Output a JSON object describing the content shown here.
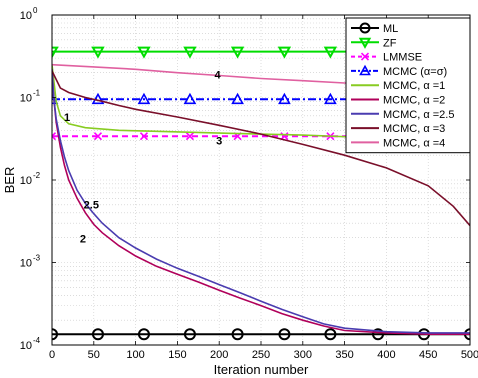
{
  "chart_data": {
    "type": "line",
    "xlabel": "Iteration number",
    "ylabel": "BER",
    "xlim": [
      0,
      500
    ],
    "ylim": [
      0.0001,
      1
    ],
    "yscale": "log",
    "grid": true,
    "legend_position": "top-right",
    "x_ticks": [
      0,
      50,
      100,
      150,
      200,
      250,
      300,
      350,
      400,
      450,
      500
    ],
    "x_tick_labels": [
      "0",
      "50",
      "100",
      "150",
      "200",
      "250",
      "300",
      "350",
      "400",
      "450",
      "500"
    ],
    "y_ticks": [
      0.0001,
      0.001,
      0.01,
      0.1,
      1
    ],
    "y_tick_labels": [
      {
        "base": "10",
        "exp": "-4"
      },
      {
        "base": "10",
        "exp": "-3"
      },
      {
        "base": "10",
        "exp": "-2"
      },
      {
        "base": "10",
        "exp": "-1"
      },
      {
        "base": "10",
        "exp": "0"
      }
    ],
    "series": [
      {
        "name": "ML",
        "color": "#000000",
        "marker": "circle",
        "dash": "solid",
        "points": [
          [
            0,
            0.000135
          ],
          [
            500,
            0.000135
          ]
        ],
        "marker_x": [
          0,
          55,
          110,
          165,
          222,
          278,
          333,
          390,
          445,
          500
        ]
      },
      {
        "name": "ZF",
        "color": "#00dd00",
        "marker": "triangle-down",
        "dash": "solid",
        "points": [
          [
            0,
            0.36
          ],
          [
            500,
            0.36
          ]
        ],
        "marker_x": [
          0,
          55,
          110,
          165,
          222,
          278,
          333,
          390,
          445,
          500
        ]
      },
      {
        "name": "LMMSE",
        "color": "#ff00ff",
        "marker": "x",
        "dash": "dashed",
        "points": [
          [
            0,
            0.034
          ],
          [
            500,
            0.034
          ]
        ],
        "marker_x": [
          0,
          55,
          110,
          165,
          222,
          278,
          333,
          390,
          445,
          500
        ]
      },
      {
        "name": "MCMC (α=σ)",
        "color": "#0000ff",
        "marker": "triangle-up",
        "dash": "dashdot",
        "points": [
          [
            0,
            0.095
          ],
          [
            500,
            0.095
          ]
        ],
        "marker_x": [
          0,
          55,
          110,
          165,
          222,
          278,
          333,
          390,
          445,
          500
        ]
      },
      {
        "name": "MCMC, α =1",
        "color": "#88cc22",
        "marker": "none",
        "dash": "solid",
        "points": [
          [
            0,
            0.25
          ],
          [
            5,
            0.09
          ],
          [
            10,
            0.06
          ],
          [
            20,
            0.048
          ],
          [
            40,
            0.043
          ],
          [
            80,
            0.04
          ],
          [
            120,
            0.039
          ],
          [
            200,
            0.037
          ],
          [
            300,
            0.035
          ],
          [
            400,
            0.032
          ],
          [
            500,
            0.031
          ]
        ]
      },
      {
        "name": "MCMC, α =2",
        "color": "#b0005a",
        "marker": "none",
        "dash": "solid",
        "points": [
          [
            0,
            0.22
          ],
          [
            2,
            0.1
          ],
          [
            5,
            0.05
          ],
          [
            10,
            0.025
          ],
          [
            15,
            0.015
          ],
          [
            20,
            0.01
          ],
          [
            30,
            0.006
          ],
          [
            40,
            0.004
          ],
          [
            50,
            0.0029
          ],
          [
            60,
            0.0023
          ],
          [
            80,
            0.0016
          ],
          [
            100,
            0.0012
          ],
          [
            125,
            0.0009
          ],
          [
            150,
            0.00072
          ],
          [
            175,
            0.00058
          ],
          [
            200,
            0.00046
          ],
          [
            225,
            0.00037
          ],
          [
            250,
            0.0003
          ],
          [
            275,
            0.00024
          ],
          [
            300,
            0.0002
          ],
          [
            325,
            0.00017
          ],
          [
            350,
            0.00015
          ],
          [
            400,
            0.00014
          ],
          [
            450,
            0.000135
          ],
          [
            500,
            0.000135
          ]
        ]
      },
      {
        "name": "MCMC, α =2.5",
        "color": "#4a3cb0",
        "marker": "none",
        "dash": "solid",
        "points": [
          [
            0,
            0.22
          ],
          [
            2,
            0.1
          ],
          [
            5,
            0.055
          ],
          [
            10,
            0.03
          ],
          [
            15,
            0.019
          ],
          [
            20,
            0.013
          ],
          [
            30,
            0.0075
          ],
          [
            40,
            0.0052
          ],
          [
            50,
            0.0039
          ],
          [
            60,
            0.003
          ],
          [
            80,
            0.002
          ],
          [
            100,
            0.0015
          ],
          [
            125,
            0.0011
          ],
          [
            150,
            0.00085
          ],
          [
            175,
            0.00068
          ],
          [
            200,
            0.00054
          ],
          [
            225,
            0.00043
          ],
          [
            250,
            0.00034
          ],
          [
            275,
            0.00027
          ],
          [
            300,
            0.00022
          ],
          [
            325,
            0.00018
          ],
          [
            350,
            0.00016
          ],
          [
            400,
            0.000145
          ],
          [
            450,
            0.00014
          ],
          [
            500,
            0.00014
          ]
        ]
      },
      {
        "name": "MCMC, α =3",
        "color": "#7a0f2a",
        "marker": "none",
        "dash": "solid",
        "points": [
          [
            0,
            0.21
          ],
          [
            10,
            0.13
          ],
          [
            20,
            0.115
          ],
          [
            40,
            0.1
          ],
          [
            60,
            0.09
          ],
          [
            80,
            0.08
          ],
          [
            100,
            0.072
          ],
          [
            150,
            0.058
          ],
          [
            200,
            0.046
          ],
          [
            250,
            0.036
          ],
          [
            300,
            0.027
          ],
          [
            350,
            0.02
          ],
          [
            400,
            0.014
          ],
          [
            450,
            0.0085
          ],
          [
            480,
            0.0048
          ],
          [
            500,
            0.0028
          ]
        ]
      },
      {
        "name": "MCMC, α =4",
        "color": "#e060a0",
        "marker": "none",
        "dash": "solid",
        "points": [
          [
            0,
            0.25
          ],
          [
            50,
            0.235
          ],
          [
            100,
            0.22
          ],
          [
            150,
            0.2
          ],
          [
            200,
            0.185
          ],
          [
            250,
            0.17
          ],
          [
            300,
            0.16
          ],
          [
            350,
            0.15
          ],
          [
            400,
            0.14
          ],
          [
            450,
            0.13
          ],
          [
            500,
            0.12
          ]
        ]
      }
    ],
    "annotations": [
      {
        "text": "1",
        "x": 18,
        "y": 0.052
      },
      {
        "text": "2",
        "x": 37,
        "y": 0.00175
      },
      {
        "text": "2.5",
        "x": 47,
        "y": 0.0045
      },
      {
        "text": "3",
        "x": 200,
        "y": 0.027
      },
      {
        "text": "4",
        "x": 198,
        "y": 0.17
      }
    ]
  }
}
